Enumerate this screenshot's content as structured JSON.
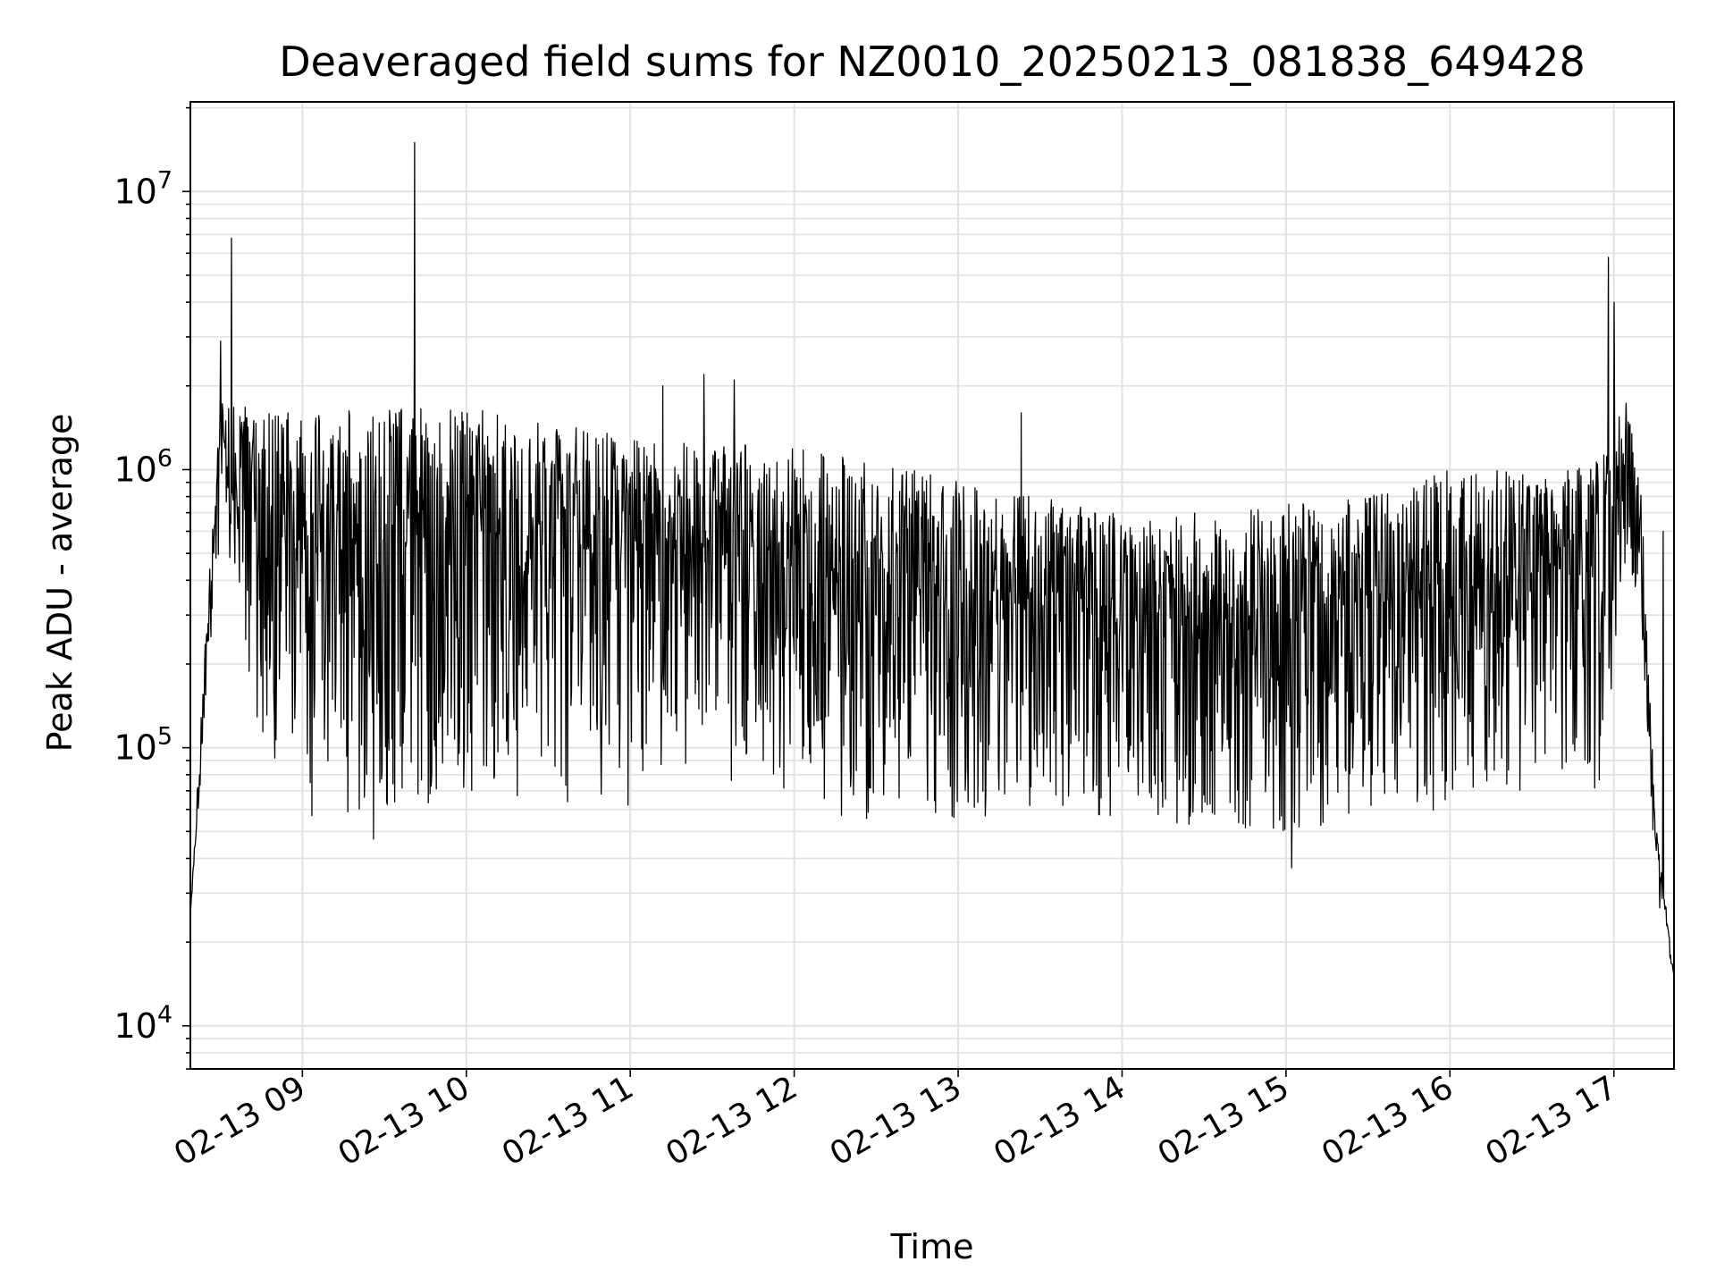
{
  "chart_data": {
    "type": "line",
    "title": "Deaveraged field sums for NZ0010_20250213_081838_649428",
    "xlabel": "Time",
    "ylabel": "Peak ADU - average",
    "y_scale": "log",
    "ylim": [
      7000,
      21000000
    ],
    "xlim": [
      "02-13 08:19",
      "02-13 17:22"
    ],
    "x_ticks": [
      "02-13 09",
      "02-13 10",
      "02-13 11",
      "02-13 12",
      "02-13 13",
      "02-13 14",
      "02-13 15",
      "02-13 16",
      "02-13 17"
    ],
    "y_ticks": [
      {
        "base": "10",
        "exp": "4"
      },
      {
        "base": "10",
        "exp": "5"
      },
      {
        "base": "10",
        "exp": "6"
      },
      {
        "base": "10",
        "exp": "7"
      }
    ],
    "grid": true,
    "line_color": "#000000",
    "series": [
      {
        "envelope_high": {
          "x": [
            "02-13 08:19",
            "02-13 08:25",
            "02-13 08:30",
            "02-13 08:40",
            "02-13 09:00",
            "02-13 09:30",
            "02-13 10:00",
            "02-13 10:30",
            "02-13 11:00",
            "02-13 11:30",
            "02-13 12:00",
            "02-13 12:30",
            "02-13 13:00",
            "02-13 13:30",
            "02-13 14:00",
            "02-13 14:30",
            "02-13 15:00",
            "02-13 15:30",
            "02-13 16:00",
            "02-13 16:30",
            "02-13 16:55",
            "02-13 17:05",
            "02-13 17:10",
            "02-13 17:15",
            "02-13 17:22"
          ],
          "y": [
            25000,
            300000,
            1800000,
            1700000,
            1600000,
            1650000,
            1700000,
            1500000,
            1300000,
            1250000,
            1200000,
            1100000,
            950000,
            800000,
            700000,
            700000,
            750000,
            800000,
            1000000,
            1000000,
            1100000,
            1800000,
            900000,
            60000,
            15000
          ]
        },
        "envelope_low": {
          "x": [
            "02-13 08:19",
            "02-13 08:30",
            "02-13 08:40",
            "02-13 09:00",
            "02-13 09:30",
            "02-13 10:00",
            "02-13 10:30",
            "02-13 11:00",
            "02-13 11:30",
            "02-13 12:00",
            "02-13 12:30",
            "02-13 13:00",
            "02-13 13:30",
            "02-13 14:00",
            "02-13 14:30",
            "02-13 15:00",
            "02-13 15:30",
            "02-13 16:00",
            "02-13 16:30",
            "02-13 16:55",
            "02-13 17:05",
            "02-13 17:10",
            "02-13 17:15",
            "02-13 17:22"
          ],
          "y": [
            25000,
            600000,
            150000,
            55000,
            60000,
            65000,
            60000,
            60000,
            70000,
            60000,
            55000,
            55000,
            58000,
            55000,
            52000,
            50000,
            55000,
            60000,
            65000,
            70000,
            500000,
            300000,
            30000,
            15000
          ]
        },
        "spikes": {
          "x": [
            "02-13 08:30",
            "02-13 08:34",
            "02-13 09:41",
            "02-13 11:12",
            "02-13 11:27",
            "02-13 11:38",
            "02-13 13:23",
            "02-13 16:58",
            "02-13 17:00",
            "02-13 17:18",
            "02-13 15:02",
            "02-13 09:26"
          ],
          "y": [
            2900000,
            6800000,
            15000000,
            2000000,
            2200000,
            2100000,
            1600000,
            5800000,
            4000000,
            600000,
            37000,
            47000
          ]
        }
      }
    ]
  }
}
